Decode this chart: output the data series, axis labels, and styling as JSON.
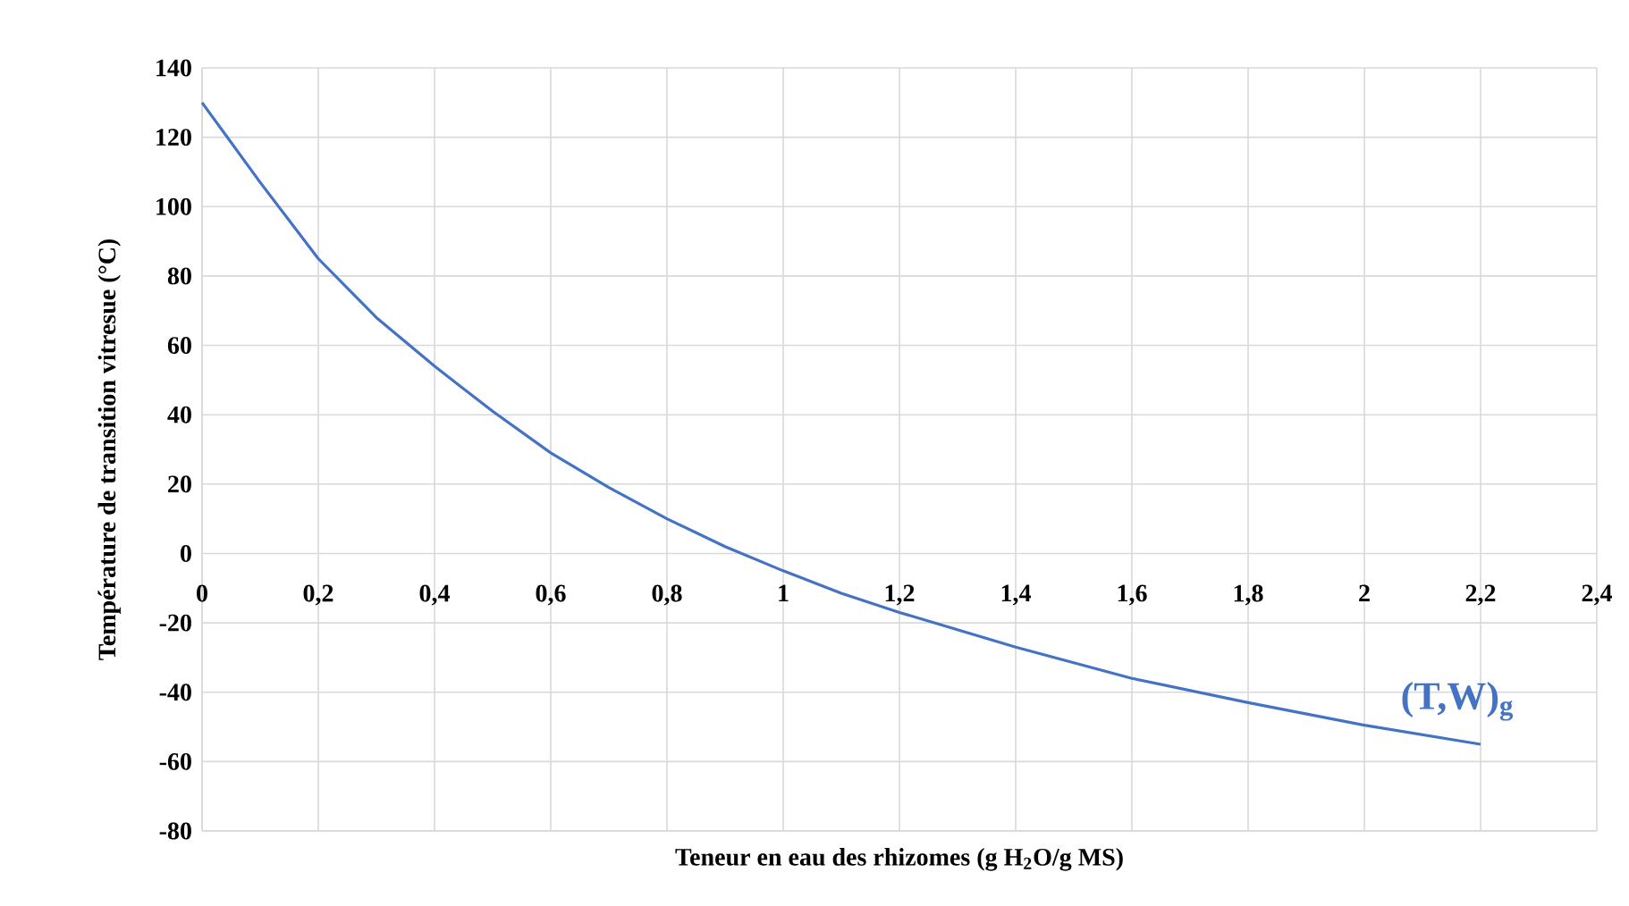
{
  "chart_data": {
    "type": "line",
    "xlabel": "Teneur en eau des rhizomes (g H$_{2}$O/g MS)",
    "ylabel": "Température de transition vitresue (°C)",
    "x": [
      0,
      0.1,
      0.2,
      0.3,
      0.4,
      0.5,
      0.6,
      0.7,
      0.8,
      0.9,
      1.0,
      1.1,
      1.2,
      1.4,
      1.6,
      1.8,
      2.0,
      2.2
    ],
    "series": [
      {
        "color": "#4472c4",
        "values": [
          130,
          107,
          85,
          68,
          54,
          41,
          29,
          19,
          10,
          2,
          -5,
          -11.5,
          -17,
          -27,
          -36,
          -43,
          -49.5,
          -55
        ]
      }
    ],
    "xlim": [
      0,
      2.4
    ],
    "ylim": [
      -80,
      140
    ],
    "xticks": [
      0,
      {
        "value": 0.2,
        "label": "0,2"
      },
      {
        "value": 0.4,
        "label": "0,4"
      },
      {
        "value": 0.6,
        "label": "0,6"
      },
      {
        "value": 0.8,
        "label": "0,8"
      },
      1,
      {
        "value": 1.2,
        "label": "1,2"
      },
      {
        "value": 1.4,
        "label": "1,4"
      },
      {
        "value": 1.6,
        "label": "1,6"
      },
      {
        "value": 1.8,
        "label": "1,8"
      },
      2,
      {
        "value": 2.2,
        "label": "2,2"
      },
      {
        "value": 2.4,
        "label": "2,4"
      }
    ],
    "yticks": [
      -80,
      -60,
      -40,
      -20,
      0,
      20,
      40,
      60,
      80,
      100,
      120,
      140
    ],
    "grid": true,
    "marker": "none",
    "line_style": "solid",
    "annotations": [
      "(T,W)$_{g}$"
    ]
  }
}
